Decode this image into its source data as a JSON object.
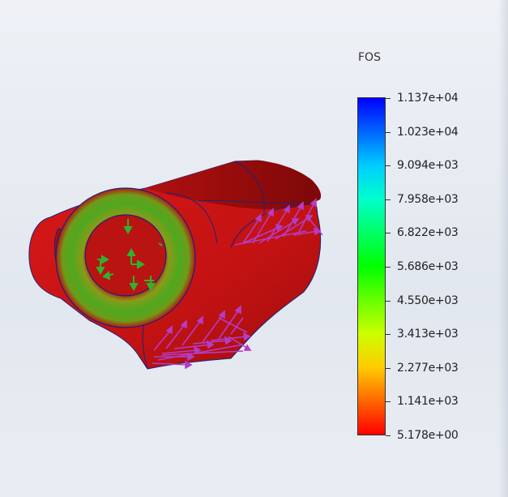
{
  "legend": {
    "title": "FOS",
    "colors": [
      "#0000ff",
      "#0066ff",
      "#00ccff",
      "#00ffcc",
      "#00ff66",
      "#00ff00",
      "#66ff00",
      "#ccff00",
      "#ffcc00",
      "#ff6600",
      "#ff0000"
    ],
    "ticks": [
      "1.137e+04",
      "1.023e+04",
      "9.094e+03",
      "7.958e+03",
      "6.822e+03",
      "5.686e+03",
      "4.550e+03",
      "3.413e+03",
      "2.277e+03",
      "1.141e+03",
      "5.178e+00"
    ]
  },
  "model": {
    "body_color": "#c81212",
    "edge_color": "#1a237e",
    "fixture_color": "#2fb32f",
    "load_color": "#b43cc8"
  }
}
